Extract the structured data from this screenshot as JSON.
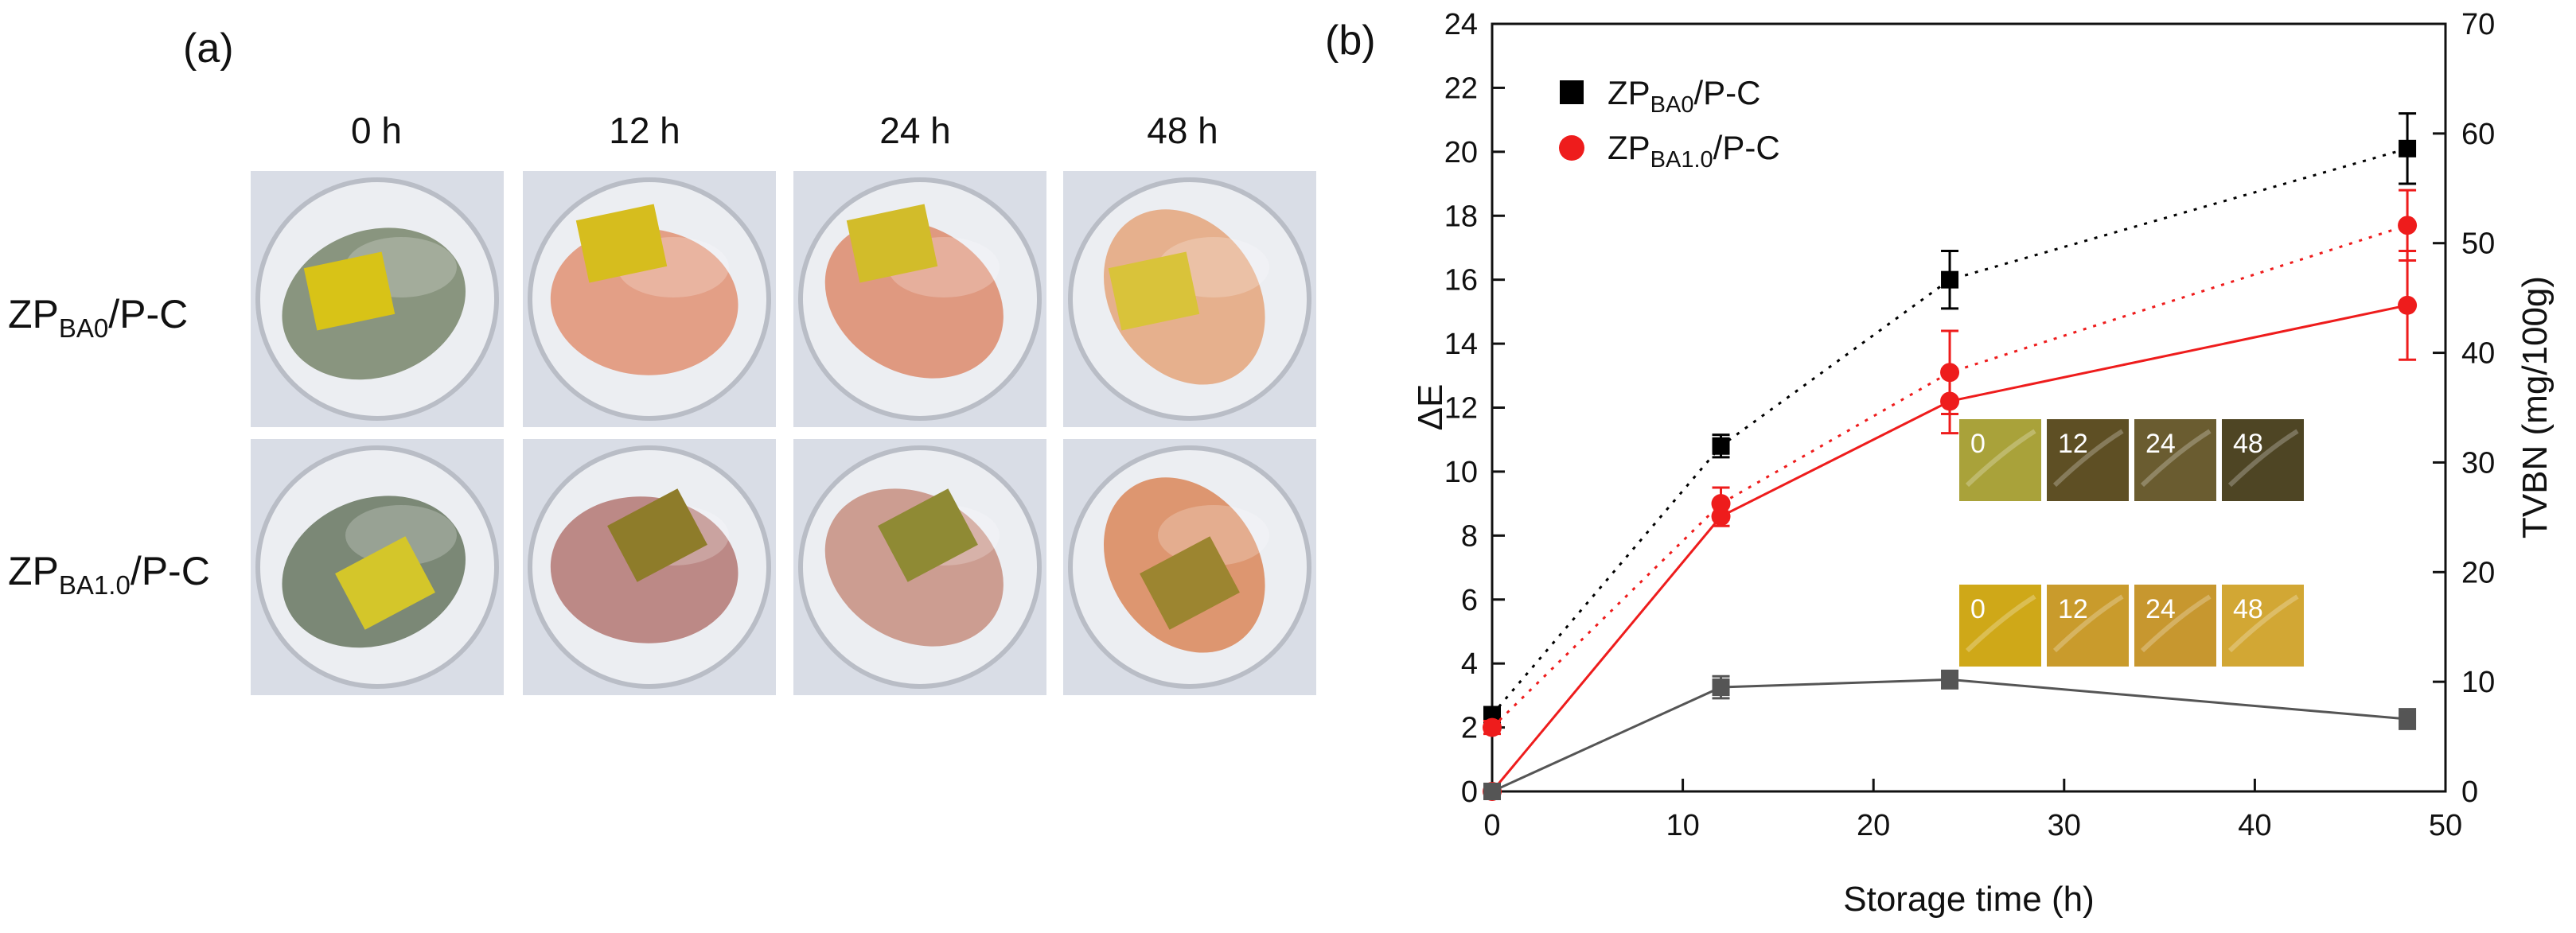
{
  "panel_a": {
    "label": "(a)",
    "columns": [
      "0 h",
      "12 h",
      "24 h",
      "48 h"
    ],
    "rows": [
      {
        "main": "ZP",
        "sub": "BA0",
        "suffix": "/P-C"
      },
      {
        "main": "ZP",
        "sub": "BA1.0",
        "suffix": "/P-C"
      }
    ]
  },
  "photos": {
    "row1_shrimp_colors": [
      "#7e8b72",
      "#e2967a",
      "#de8f73",
      "#e6a882"
    ],
    "row2_shrimp_colors": [
      "#6f7c68",
      "#b77d7a",
      "#c99386",
      "#dc8c62"
    ],
    "row1_film_colors": [
      "#d8c317",
      "#d6bd1e",
      "#d2bc2a",
      "#d9c33a"
    ],
    "row2_film_colors": [
      "#d4c62a",
      "#8e7c2a",
      "#8f8a34",
      "#9c8530"
    ],
    "background": "#d9dde6"
  },
  "inset": {
    "row1_labels": [
      "0",
      "12",
      "24",
      "48"
    ],
    "row1_colors": [
      "#a9a23a",
      "#5e4f24",
      "#6a5c30",
      "#4e4524"
    ],
    "row2_labels": [
      "0",
      "12",
      "24",
      "48"
    ],
    "row2_colors": [
      "#cfa818",
      "#c99b2c",
      "#c7972f",
      "#d2a734"
    ]
  },
  "chart_data": {
    "type": "line",
    "panel_label": "(b)",
    "xlabel": "Storage time (h)",
    "ylabel": "ΔE",
    "y2label": "TVBN (mg/100g)",
    "xlim": [
      0,
      50
    ],
    "ylim": [
      0,
      24
    ],
    "y2lim": [
      0,
      70
    ],
    "x_ticks": [
      "0",
      "10",
      "20",
      "30",
      "40",
      "50"
    ],
    "y_ticks": [
      "0",
      "2",
      "4",
      "6",
      "8",
      "10",
      "12",
      "14",
      "16",
      "18",
      "20",
      "22",
      "24"
    ],
    "y2_ticks": [
      "0",
      "10",
      "20",
      "30",
      "40",
      "50",
      "60",
      "70"
    ],
    "legend_position": "top-left",
    "legend": [
      {
        "main": "ZP",
        "sub": "BA0",
        "suffix": "/P-C",
        "color": "#000000",
        "marker": "square"
      },
      {
        "main": "ZP",
        "sub": "BA1.0",
        "suffix": "/P-C",
        "color": "#ee1c1c",
        "marker": "circle"
      }
    ],
    "series": [
      {
        "name": "ZP_BA0/P-C ΔE",
        "axis": "left",
        "style": "dotted",
        "marker": "square",
        "color": "#000000",
        "x": [
          0,
          12,
          24,
          48
        ],
        "values": [
          2.4,
          10.8,
          16.0,
          20.1
        ],
        "errors": [
          0.2,
          0.35,
          0.9,
          1.1
        ]
      },
      {
        "name": "ZP_BA1.0/P-C ΔE",
        "axis": "left",
        "style": "dotted",
        "marker": "circle",
        "color": "#ee1c1c",
        "x": [
          0,
          12,
          24,
          48
        ],
        "values": [
          2.0,
          9.0,
          13.1,
          17.7
        ],
        "errors": [
          0.2,
          0.5,
          1.3,
          1.1
        ]
      },
      {
        "name": "ZP_BA1.0/P-C ΔE (solid)",
        "axis": "left",
        "style": "solid",
        "marker": "circle",
        "color": "#ee1c1c",
        "x": [
          0,
          12,
          24,
          48
        ],
        "values": [
          0,
          8.6,
          12.2,
          15.2
        ],
        "errors": [
          0,
          0.3,
          1.0,
          1.7
        ]
      },
      {
        "name": "TVBN",
        "axis": "right",
        "style": "solid",
        "marker": "square",
        "color": "#555555",
        "x": [
          0,
          12,
          24,
          48
        ],
        "values": [
          0,
          9.5,
          10.2,
          6.6
        ],
        "errors": [
          0,
          1.0,
          0.8,
          0.9
        ]
      }
    ]
  }
}
